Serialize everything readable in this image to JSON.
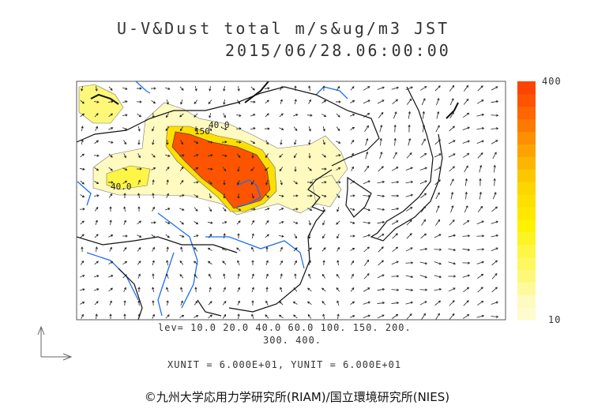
{
  "title": {
    "line1": "U-V&Dust total m/s&ug/m3 JST",
    "line2": "2015/06/28.06:00:00"
  },
  "colorbar": {
    "max_label": "400",
    "min_label": "10",
    "colors": [
      "#fefccc",
      "#fefac0",
      "#fefa9c",
      "#fef87a",
      "#fef760",
      "#fef545",
      "#fef326",
      "#fef200",
      "#fee800",
      "#fde000",
      "#fdd500",
      "#fdc700",
      "#fdb600",
      "#fda300",
      "#fd8f00",
      "#fd7a00",
      "#fd6600",
      "#fd5400",
      "#fd4400"
    ]
  },
  "map": {
    "contour_labels": [
      "40.0",
      "150",
      "40.0"
    ],
    "land_color": "#000000",
    "river_color": "#1e6ef0"
  },
  "legend": {
    "lev_line1": "lev= 10.0 20.0 40.0 60.0 100. 150. 200.",
    "lev_line2": "300. 400.",
    "units": "XUNIT = 6.000E+01, YUNIT = 6.000E+01"
  },
  "copyright": "©九州大学応用力学研究所(RIAM)/国立環境研究所(NIES)"
}
